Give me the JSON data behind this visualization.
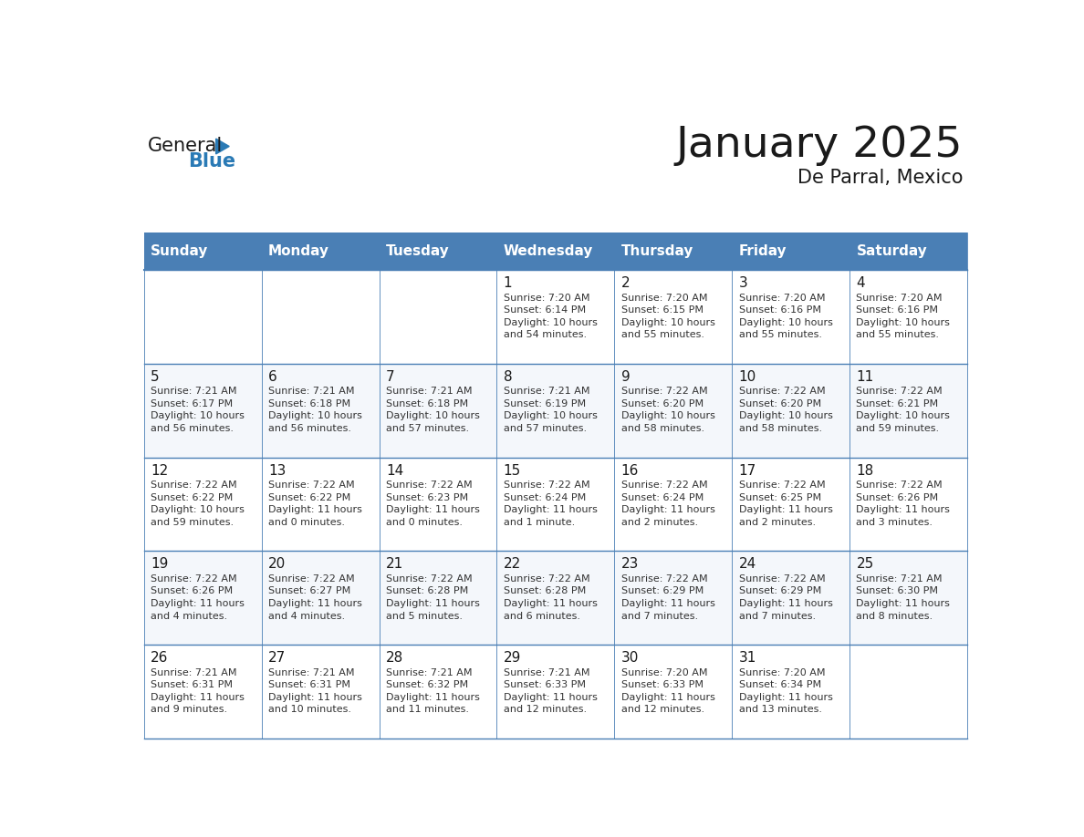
{
  "title": "January 2025",
  "subtitle": "De Parral, Mexico",
  "days_of_week": [
    "Sunday",
    "Monday",
    "Tuesday",
    "Wednesday",
    "Thursday",
    "Friday",
    "Saturday"
  ],
  "header_bg": "#4a7fb5",
  "header_text": "#ffffff",
  "cell_bg_even": "#ffffff",
  "cell_bg_odd": "#f4f7fb",
  "border_color": "#4a7fb5",
  "title_color": "#1a1a1a",
  "subtitle_color": "#1a1a1a",
  "day_num_color": "#1a1a1a",
  "cell_text_color": "#333333",
  "logo_general_color": "#1a1a1a",
  "logo_blue_color": "#2a7ab5",
  "calendar_data": [
    [
      {
        "day": "",
        "info": ""
      },
      {
        "day": "",
        "info": ""
      },
      {
        "day": "",
        "info": ""
      },
      {
        "day": "1",
        "info": "Sunrise: 7:20 AM\nSunset: 6:14 PM\nDaylight: 10 hours\nand 54 minutes."
      },
      {
        "day": "2",
        "info": "Sunrise: 7:20 AM\nSunset: 6:15 PM\nDaylight: 10 hours\nand 55 minutes."
      },
      {
        "day": "3",
        "info": "Sunrise: 7:20 AM\nSunset: 6:16 PM\nDaylight: 10 hours\nand 55 minutes."
      },
      {
        "day": "4",
        "info": "Sunrise: 7:20 AM\nSunset: 6:16 PM\nDaylight: 10 hours\nand 55 minutes."
      }
    ],
    [
      {
        "day": "5",
        "info": "Sunrise: 7:21 AM\nSunset: 6:17 PM\nDaylight: 10 hours\nand 56 minutes."
      },
      {
        "day": "6",
        "info": "Sunrise: 7:21 AM\nSunset: 6:18 PM\nDaylight: 10 hours\nand 56 minutes."
      },
      {
        "day": "7",
        "info": "Sunrise: 7:21 AM\nSunset: 6:18 PM\nDaylight: 10 hours\nand 57 minutes."
      },
      {
        "day": "8",
        "info": "Sunrise: 7:21 AM\nSunset: 6:19 PM\nDaylight: 10 hours\nand 57 minutes."
      },
      {
        "day": "9",
        "info": "Sunrise: 7:22 AM\nSunset: 6:20 PM\nDaylight: 10 hours\nand 58 minutes."
      },
      {
        "day": "10",
        "info": "Sunrise: 7:22 AM\nSunset: 6:20 PM\nDaylight: 10 hours\nand 58 minutes."
      },
      {
        "day": "11",
        "info": "Sunrise: 7:22 AM\nSunset: 6:21 PM\nDaylight: 10 hours\nand 59 minutes."
      }
    ],
    [
      {
        "day": "12",
        "info": "Sunrise: 7:22 AM\nSunset: 6:22 PM\nDaylight: 10 hours\nand 59 minutes."
      },
      {
        "day": "13",
        "info": "Sunrise: 7:22 AM\nSunset: 6:22 PM\nDaylight: 11 hours\nand 0 minutes."
      },
      {
        "day": "14",
        "info": "Sunrise: 7:22 AM\nSunset: 6:23 PM\nDaylight: 11 hours\nand 0 minutes."
      },
      {
        "day": "15",
        "info": "Sunrise: 7:22 AM\nSunset: 6:24 PM\nDaylight: 11 hours\nand 1 minute."
      },
      {
        "day": "16",
        "info": "Sunrise: 7:22 AM\nSunset: 6:24 PM\nDaylight: 11 hours\nand 2 minutes."
      },
      {
        "day": "17",
        "info": "Sunrise: 7:22 AM\nSunset: 6:25 PM\nDaylight: 11 hours\nand 2 minutes."
      },
      {
        "day": "18",
        "info": "Sunrise: 7:22 AM\nSunset: 6:26 PM\nDaylight: 11 hours\nand 3 minutes."
      }
    ],
    [
      {
        "day": "19",
        "info": "Sunrise: 7:22 AM\nSunset: 6:26 PM\nDaylight: 11 hours\nand 4 minutes."
      },
      {
        "day": "20",
        "info": "Sunrise: 7:22 AM\nSunset: 6:27 PM\nDaylight: 11 hours\nand 4 minutes."
      },
      {
        "day": "21",
        "info": "Sunrise: 7:22 AM\nSunset: 6:28 PM\nDaylight: 11 hours\nand 5 minutes."
      },
      {
        "day": "22",
        "info": "Sunrise: 7:22 AM\nSunset: 6:28 PM\nDaylight: 11 hours\nand 6 minutes."
      },
      {
        "day": "23",
        "info": "Sunrise: 7:22 AM\nSunset: 6:29 PM\nDaylight: 11 hours\nand 7 minutes."
      },
      {
        "day": "24",
        "info": "Sunrise: 7:22 AM\nSunset: 6:29 PM\nDaylight: 11 hours\nand 7 minutes."
      },
      {
        "day": "25",
        "info": "Sunrise: 7:21 AM\nSunset: 6:30 PM\nDaylight: 11 hours\nand 8 minutes."
      }
    ],
    [
      {
        "day": "26",
        "info": "Sunrise: 7:21 AM\nSunset: 6:31 PM\nDaylight: 11 hours\nand 9 minutes."
      },
      {
        "day": "27",
        "info": "Sunrise: 7:21 AM\nSunset: 6:31 PM\nDaylight: 11 hours\nand 10 minutes."
      },
      {
        "day": "28",
        "info": "Sunrise: 7:21 AM\nSunset: 6:32 PM\nDaylight: 11 hours\nand 11 minutes."
      },
      {
        "day": "29",
        "info": "Sunrise: 7:21 AM\nSunset: 6:33 PM\nDaylight: 11 hours\nand 12 minutes."
      },
      {
        "day": "30",
        "info": "Sunrise: 7:20 AM\nSunset: 6:33 PM\nDaylight: 11 hours\nand 12 minutes."
      },
      {
        "day": "31",
        "info": "Sunrise: 7:20 AM\nSunset: 6:34 PM\nDaylight: 11 hours\nand 13 minutes."
      },
      {
        "day": "",
        "info": ""
      }
    ]
  ]
}
